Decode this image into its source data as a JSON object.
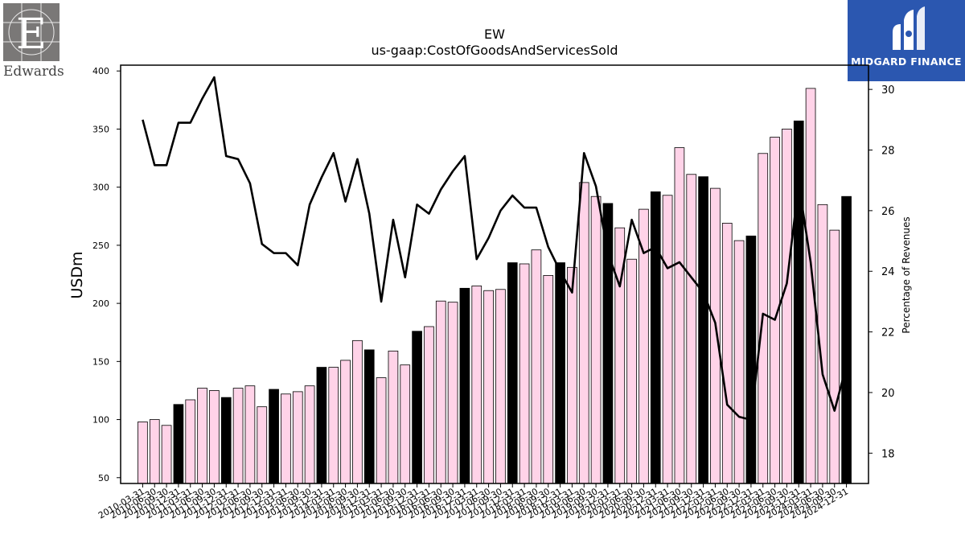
{
  "chart_data": {
    "type": "bar",
    "title": "EW",
    "subtitle": "us-gaap:CostOfGoodsAndServicesSold",
    "ylabel": "USDm",
    "y2label": "Percentage of Revenues",
    "ylim": [
      45,
      405
    ],
    "y2lim": [
      17.0,
      30.8
    ],
    "yticks": [
      50,
      100,
      150,
      200,
      250,
      300,
      350,
      400
    ],
    "y2ticks": [
      18,
      20,
      22,
      24,
      26,
      28,
      30
    ],
    "categories": [
      "2010-03-31",
      "2010-06-30",
      "2010-09-30",
      "2010-12-31",
      "2011-03-31",
      "2011-06-30",
      "2011-09-30",
      "2011-12-31",
      "2012-03-31",
      "2012-06-30",
      "2012-09-30",
      "2012-12-31",
      "2013-03-31",
      "2013-06-30",
      "2013-09-30",
      "2013-12-31",
      "2014-03-31",
      "2014-06-30",
      "2014-09-30",
      "2014-12-31",
      "2015-03-31",
      "2015-06-30",
      "2015-09-30",
      "2015-12-31",
      "2016-03-31",
      "2016-06-30",
      "2016-09-30",
      "2016-12-31",
      "2017-03-31",
      "2017-06-30",
      "2017-09-30",
      "2017-12-31",
      "2018-03-31",
      "2018-06-30",
      "2018-09-30",
      "2018-12-31",
      "2019-03-31",
      "2019-06-30",
      "2019-09-30",
      "2019-12-31",
      "2020-03-31",
      "2020-06-30",
      "2020-09-30",
      "2020-12-31",
      "2021-03-31",
      "2021-06-30",
      "2021-09-30",
      "2021-12-31",
      "2022-03-31",
      "2022-06-30",
      "2022-09-30",
      "2022-12-31",
      "2023-03-31",
      "2023-06-30",
      "2023-09-30",
      "2023-12-31",
      "2024-03-31",
      "2024-06-30",
      "2024-09-30",
      "2024-12-31"
    ],
    "xticklabels": [
      "2010-03-31",
      "2010-06-30",
      "2010-09-30",
      "2010-12-31",
      "2011-03-31",
      "2011-06-30",
      "2011-09-30",
      "2011-12-31",
      "2012-03-31",
      "2012-06-30",
      "2012-09-30",
      "2012-12-31",
      "2013-03-31",
      "2013-06-30",
      "2013-09-30",
      "2013-12-31",
      "2014-03-31",
      "2014-06-30",
      "2014-09-30",
      "2014-12-31",
      "2015-03-31",
      "2015-06-30",
      "2015-09-30",
      "2015-12-31",
      "2016-03-31",
      "2016-06-30",
      "2016-09-30",
      "2016-12-31",
      "2017-03-31",
      "2017-06-30",
      "2017-09-30",
      "2017-12-31",
      "2018-03-31",
      "2018-06-30",
      "2018-09-30",
      "2018-12-31",
      "2019-03-31",
      "2019-06-30",
      "2019-09-30",
      "2019-12-31",
      "2020-03-31",
      "2020-06-30",
      "2020-09-30",
      "2020-12-31",
      "2021-03-31",
      "2021-06-30",
      "2021-09-30",
      "2021-12-31",
      "2022-03-31",
      "2022-06-30",
      "2022-09-30",
      "2022-12-31",
      "2023-03-31",
      "2023-06-30",
      "2023-09-30",
      "2023-12-31",
      "2024-03-31",
      "2024-06-30",
      "2024-09-30",
      "2024-12-31"
    ],
    "series": [
      {
        "type": "bar",
        "axis": "left",
        "values": [
          98,
          100,
          95,
          113,
          117,
          127,
          125,
          119,
          127,
          129,
          111,
          126,
          122,
          124,
          129,
          145,
          145,
          151,
          168,
          160,
          136,
          159,
          147,
          176,
          180,
          202,
          201,
          213,
          215,
          211,
          212,
          235,
          234,
          246,
          224,
          235,
          231,
          304,
          292,
          286,
          265,
          238,
          281,
          296,
          293,
          334,
          311,
          309,
          299,
          269,
          254,
          258,
          329,
          343,
          350,
          357,
          385,
          285,
          263,
          292
        ],
        "highlight": [
          false,
          false,
          false,
          true,
          false,
          false,
          false,
          true,
          false,
          false,
          false,
          true,
          false,
          false,
          false,
          true,
          false,
          false,
          false,
          true,
          false,
          false,
          false,
          true,
          false,
          false,
          false,
          true,
          false,
          false,
          false,
          true,
          false,
          false,
          false,
          true,
          false,
          false,
          false,
          true,
          false,
          false,
          false,
          true,
          false,
          false,
          false,
          true,
          false,
          false,
          false,
          true,
          false,
          false,
          false,
          true,
          false,
          false,
          false,
          true
        ]
      },
      {
        "type": "line",
        "axis": "right",
        "values": [
          29.0,
          27.5,
          27.5,
          28.9,
          28.9,
          29.7,
          30.4,
          27.8,
          27.7,
          26.9,
          24.9,
          24.6,
          24.6,
          24.2,
          26.2,
          27.1,
          27.9,
          26.3,
          27.7,
          25.9,
          23.0,
          25.7,
          23.8,
          26.2,
          25.9,
          26.7,
          27.3,
          27.8,
          24.4,
          25.1,
          26.0,
          26.5,
          26.1,
          26.1,
          24.8,
          24.0,
          23.3,
          27.9,
          26.8,
          24.6,
          23.5,
          25.7,
          24.6,
          24.8,
          24.1,
          24.3,
          23.8,
          23.3,
          22.3,
          19.6,
          19.2,
          19.1,
          22.6,
          22.4,
          23.6,
          26.9,
          24.3,
          20.6,
          19.4,
          20.9
        ]
      }
    ],
    "colors": {
      "bar": "#ffd3e8",
      "bar_highlight": "#000000",
      "line": "#000000"
    }
  },
  "logos": {
    "left": {
      "text": "Edwards"
    },
    "right": {
      "text": "MIDGARD FINANCE",
      "background": "#2b57b0"
    }
  }
}
